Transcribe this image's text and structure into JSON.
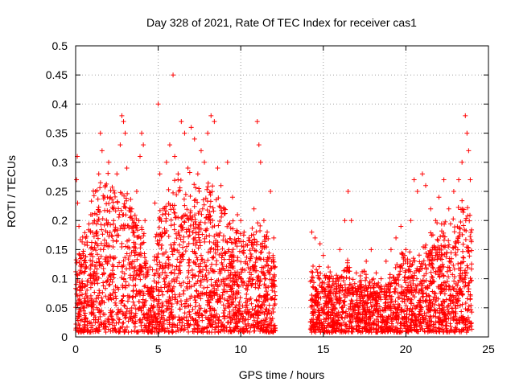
{
  "chart_data": {
    "type": "scatter",
    "title": "Day 328 of 2021, Rate Of TEC Index for receiver cas1",
    "xlabel": "GPS time / hours",
    "ylabel": "ROTI / TECUs",
    "xlim": [
      0,
      25
    ],
    "ylim": [
      0,
      0.5
    ],
    "xticks": [
      0,
      5,
      10,
      15,
      20,
      25
    ],
    "xtick_labels": [
      "0",
      "5",
      "10",
      "15",
      "20",
      "25"
    ],
    "yticks": [
      0,
      0.05,
      0.1,
      0.15,
      0.2,
      0.25,
      0.3,
      0.35,
      0.4,
      0.45,
      0.5
    ],
    "ytick_labels": [
      "0",
      "0.05",
      "0.1",
      "0.15",
      "0.2",
      "0.25",
      "0.3",
      "0.35",
      "0.4",
      "0.45",
      "0.5"
    ],
    "grid": true,
    "marker": "+",
    "marker_color": "#ff0000",
    "data_gap_hours": [
      12.1,
      14.2
    ],
    "series": [
      {
        "name": "cas1",
        "points": [
          [
            0.05,
            0.27
          ],
          [
            0.1,
            0.31
          ],
          [
            0.12,
            0.23
          ],
          [
            0.2,
            0.19
          ],
          [
            0.3,
            0.14
          ],
          [
            0.5,
            0.11
          ],
          [
            0.7,
            0.06
          ],
          [
            0.9,
            0.18
          ],
          [
            1.0,
            0.21
          ],
          [
            1.2,
            0.25
          ],
          [
            1.4,
            0.28
          ],
          [
            1.5,
            0.35
          ],
          [
            1.6,
            0.32
          ],
          [
            1.8,
            0.26
          ],
          [
            2.0,
            0.3
          ],
          [
            2.1,
            0.24
          ],
          [
            2.3,
            0.2
          ],
          [
            2.5,
            0.28
          ],
          [
            2.7,
            0.33
          ],
          [
            2.8,
            0.38
          ],
          [
            2.9,
            0.37
          ],
          [
            3.0,
            0.35
          ],
          [
            3.1,
            0.29
          ],
          [
            3.3,
            0.22
          ],
          [
            3.5,
            0.18
          ],
          [
            3.7,
            0.25
          ],
          [
            3.9,
            0.31
          ],
          [
            4.0,
            0.35
          ],
          [
            4.1,
            0.33
          ],
          [
            4.2,
            0.2
          ],
          [
            4.5,
            0.12
          ],
          [
            4.8,
            0.23
          ],
          [
            5.0,
            0.4
          ],
          [
            5.1,
            0.28
          ],
          [
            5.3,
            0.22
          ],
          [
            5.5,
            0.3
          ],
          [
            5.7,
            0.33
          ],
          [
            5.9,
            0.45
          ],
          [
            6.0,
            0.31
          ],
          [
            6.2,
            0.27
          ],
          [
            6.4,
            0.37
          ],
          [
            6.6,
            0.35
          ],
          [
            6.8,
            0.29
          ],
          [
            7.0,
            0.36
          ],
          [
            7.2,
            0.34
          ],
          [
            7.4,
            0.28
          ],
          [
            7.6,
            0.32
          ],
          [
            7.8,
            0.3
          ],
          [
            8.0,
            0.35
          ],
          [
            8.2,
            0.38
          ],
          [
            8.4,
            0.37
          ],
          [
            8.6,
            0.29
          ],
          [
            8.8,
            0.26
          ],
          [
            9.0,
            0.22
          ],
          [
            9.2,
            0.3
          ],
          [
            9.5,
            0.24
          ],
          [
            9.8,
            0.21
          ],
          [
            10.0,
            0.2
          ],
          [
            10.2,
            0.18
          ],
          [
            10.5,
            0.17
          ],
          [
            10.8,
            0.22
          ],
          [
            11.0,
            0.37
          ],
          [
            11.1,
            0.33
          ],
          [
            11.2,
            0.3
          ],
          [
            11.4,
            0.2
          ],
          [
            11.6,
            0.18
          ],
          [
            11.8,
            0.25
          ],
          [
            12.0,
            0.17
          ],
          [
            14.3,
            0.18
          ],
          [
            14.5,
            0.17
          ],
          [
            14.8,
            0.16
          ],
          [
            15.0,
            0.14
          ],
          [
            15.3,
            0.12
          ],
          [
            15.6,
            0.1
          ],
          [
            16.0,
            0.15
          ],
          [
            16.3,
            0.2
          ],
          [
            16.5,
            0.25
          ],
          [
            16.7,
            0.2
          ],
          [
            17.0,
            0.11
          ],
          [
            17.3,
            0.09
          ],
          [
            17.6,
            0.13
          ],
          [
            17.9,
            0.15
          ],
          [
            18.2,
            0.11
          ],
          [
            18.5,
            0.1
          ],
          [
            18.8,
            0.13
          ],
          [
            19.1,
            0.15
          ],
          [
            19.4,
            0.17
          ],
          [
            19.7,
            0.19
          ],
          [
            20.0,
            0.15
          ],
          [
            20.3,
            0.2
          ],
          [
            20.5,
            0.27
          ],
          [
            20.7,
            0.25
          ],
          [
            21.0,
            0.28
          ],
          [
            21.2,
            0.26
          ],
          [
            21.5,
            0.22
          ],
          [
            21.8,
            0.2
          ],
          [
            22.0,
            0.24
          ],
          [
            22.3,
            0.27
          ],
          [
            22.6,
            0.22
          ],
          [
            22.9,
            0.25
          ],
          [
            23.2,
            0.27
          ],
          [
            23.4,
            0.3
          ],
          [
            23.6,
            0.38
          ],
          [
            23.7,
            0.35
          ],
          [
            23.8,
            0.32
          ],
          [
            23.9,
            0.27
          ]
        ],
        "dense_envelope": [
          [
            0.0,
            0.13
          ],
          [
            0.5,
            0.16
          ],
          [
            1.0,
            0.21
          ],
          [
            1.5,
            0.23
          ],
          [
            2.0,
            0.25
          ],
          [
            2.5,
            0.25
          ],
          [
            3.0,
            0.25
          ],
          [
            3.5,
            0.22
          ],
          [
            4.0,
            0.19
          ],
          [
            4.5,
            0.09
          ],
          [
            5.0,
            0.19
          ],
          [
            5.5,
            0.22
          ],
          [
            6.0,
            0.25
          ],
          [
            6.5,
            0.24
          ],
          [
            7.0,
            0.25
          ],
          [
            7.5,
            0.23
          ],
          [
            8.0,
            0.24
          ],
          [
            8.5,
            0.22
          ],
          [
            9.0,
            0.2
          ],
          [
            9.5,
            0.18
          ],
          [
            10.0,
            0.17
          ],
          [
            10.5,
            0.17
          ],
          [
            11.0,
            0.18
          ],
          [
            11.5,
            0.16
          ],
          [
            12.0,
            0.13
          ],
          [
            14.2,
            0.11
          ],
          [
            14.5,
            0.14
          ],
          [
            15.0,
            0.1
          ],
          [
            15.5,
            0.09
          ],
          [
            16.0,
            0.1
          ],
          [
            16.5,
            0.12
          ],
          [
            17.0,
            0.08
          ],
          [
            17.5,
            0.1
          ],
          [
            18.0,
            0.09
          ],
          [
            18.5,
            0.08
          ],
          [
            19.0,
            0.1
          ],
          [
            19.5,
            0.12
          ],
          [
            20.0,
            0.13
          ],
          [
            20.5,
            0.12
          ],
          [
            21.0,
            0.14
          ],
          [
            21.5,
            0.16
          ],
          [
            22.0,
            0.17
          ],
          [
            22.5,
            0.18
          ],
          [
            23.0,
            0.19
          ],
          [
            23.5,
            0.22
          ],
          [
            24.0,
            0.2
          ]
        ]
      }
    ]
  }
}
